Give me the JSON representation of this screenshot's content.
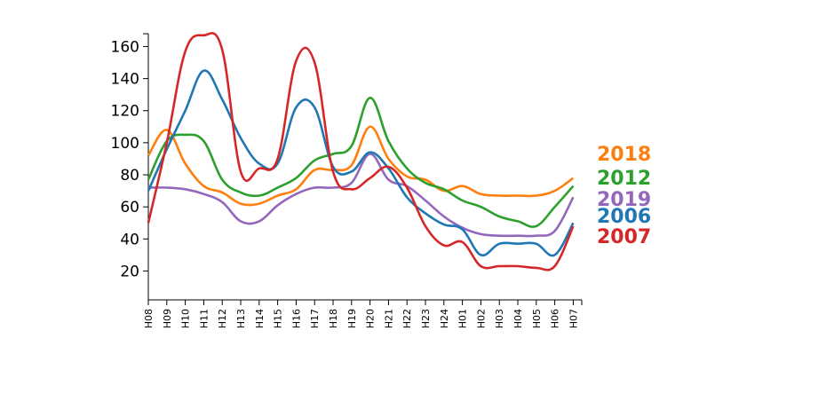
{
  "chart_data": {
    "type": "line",
    "title": "",
    "xlabel": "",
    "ylabel": "",
    "grid": false,
    "legend_placement": "right",
    "ylim": [
      2,
      168
    ],
    "yticks": [
      20,
      40,
      60,
      80,
      100,
      120,
      140,
      160
    ],
    "categories": [
      "H08",
      "H09",
      "H10",
      "H11",
      "H12",
      "H13",
      "H14",
      "H15",
      "H16",
      "H17",
      "H18",
      "H19",
      "H20",
      "H21",
      "H22",
      "H23",
      "H24",
      "H01",
      "H02",
      "H03",
      "H04",
      "H05",
      "H06",
      "H07"
    ],
    "series": [
      {
        "name": "2018",
        "color": "#ff7f0e",
        "values": [
          92,
          108,
          87,
          73,
          69,
          62,
          62,
          67,
          71,
          83,
          83,
          86,
          110,
          90,
          79,
          77,
          70,
          73,
          68,
          67,
          67,
          67,
          70,
          78
        ]
      },
      {
        "name": "2012",
        "color": "#2ca02c",
        "values": [
          77,
          101,
          105,
          101,
          77,
          69,
          67,
          72,
          78,
          89,
          93,
          98,
          128,
          101,
          84,
          75,
          71,
          64,
          60,
          54,
          51,
          48,
          60,
          73
        ]
      },
      {
        "name": "2019",
        "color": "#9467bd",
        "values": [
          72,
          72,
          71,
          68,
          63,
          51,
          51,
          61,
          68,
          72,
          72,
          75,
          93,
          77,
          73,
          64,
          54,
          47,
          43,
          42,
          42,
          42,
          45,
          66
        ]
      },
      {
        "name": "2006",
        "color": "#1f77b4",
        "values": [
          70,
          96,
          120,
          145,
          127,
          103,
          87,
          87,
          122,
          122,
          85,
          82,
          94,
          84,
          66,
          56,
          49,
          46,
          30,
          37,
          37,
          37,
          30,
          50
        ]
      },
      {
        "name": "2007",
        "color": "#d62728",
        "values": [
          50,
          100,
          157,
          167,
          158,
          82,
          84,
          90,
          151,
          150,
          82,
          71,
          78,
          85,
          72,
          48,
          36,
          38,
          23,
          23,
          23,
          22,
          23,
          48
        ]
      }
    ]
  }
}
